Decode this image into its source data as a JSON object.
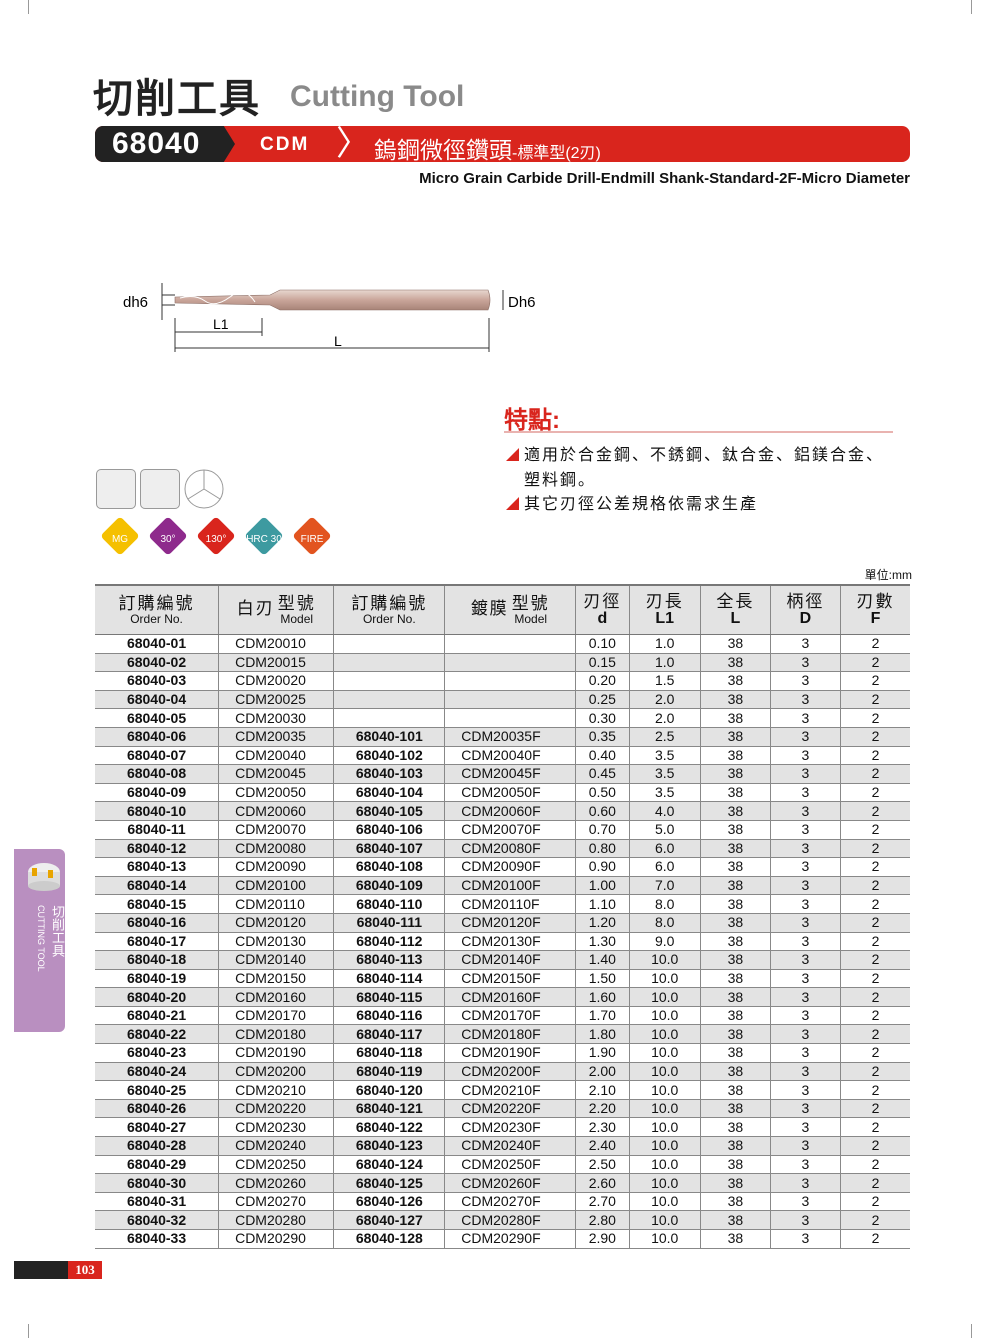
{
  "header": {
    "title_cn": "切削工具",
    "title_en": "Cutting Tool",
    "code": "68040",
    "series": "CDM",
    "name_cn": "鎢鋼微徑鑽頭",
    "name_cn_sub": "-標準型(2刃)",
    "name_en": "Micro Grain Carbide Drill-Endmill Shank-Standard-2F-Micro Diameter"
  },
  "drawing": {
    "dh6": "dh6",
    "Dh6": "Dh6",
    "L1": "L1",
    "L": "L"
  },
  "features": {
    "title": "特點:",
    "items": [
      "適用於合金鋼、不銹鋼、鈦合金、鋁鎂合金、",
      "塑料鋼。",
      "其它刃徑公差規格依需求生產"
    ]
  },
  "badges": [
    "MG",
    "30°",
    "130°",
    "HRC 30",
    "FIRE"
  ],
  "badge_colors": [
    "#f5c000",
    "#8e2a8c",
    "#d9251d",
    "#3d9aa0",
    "#e2541f"
  ],
  "unit": "單位:mm",
  "table": {
    "headers": [
      {
        "cn": "訂購編號",
        "en": "Order No."
      },
      {
        "pre": "白刃",
        "cn": "型號",
        "en": "Model"
      },
      {
        "cn": "訂購編號",
        "en": "Order No."
      },
      {
        "pre": "鍍膜",
        "cn": "型號",
        "en": "Model"
      },
      {
        "cn": "刃徑",
        "sym": "d"
      },
      {
        "cn": "刃長",
        "sym": "L1"
      },
      {
        "cn": "全長",
        "sym": "L"
      },
      {
        "cn": "柄徑",
        "sym": "D"
      },
      {
        "cn": "刃數",
        "sym": "F"
      }
    ],
    "rows": [
      [
        "68040-01",
        "CDM20010",
        "",
        "",
        "0.10",
        "1.0",
        "38",
        "3",
        "2"
      ],
      [
        "68040-02",
        "CDM20015",
        "",
        "",
        "0.15",
        "1.0",
        "38",
        "3",
        "2"
      ],
      [
        "68040-03",
        "CDM20020",
        "",
        "",
        "0.20",
        "1.5",
        "38",
        "3",
        "2"
      ],
      [
        "68040-04",
        "CDM20025",
        "",
        "",
        "0.25",
        "2.0",
        "38",
        "3",
        "2"
      ],
      [
        "68040-05",
        "CDM20030",
        "",
        "",
        "0.30",
        "2.0",
        "38",
        "3",
        "2"
      ],
      [
        "68040-06",
        "CDM20035",
        "68040-101",
        "CDM20035F",
        "0.35",
        "2.5",
        "38",
        "3",
        "2"
      ],
      [
        "68040-07",
        "CDM20040",
        "68040-102",
        "CDM20040F",
        "0.40",
        "3.5",
        "38",
        "3",
        "2"
      ],
      [
        "68040-08",
        "CDM20045",
        "68040-103",
        "CDM20045F",
        "0.45",
        "3.5",
        "38",
        "3",
        "2"
      ],
      [
        "68040-09",
        "CDM20050",
        "68040-104",
        "CDM20050F",
        "0.50",
        "3.5",
        "38",
        "3",
        "2"
      ],
      [
        "68040-10",
        "CDM20060",
        "68040-105",
        "CDM20060F",
        "0.60",
        "4.0",
        "38",
        "3",
        "2"
      ],
      [
        "68040-11",
        "CDM20070",
        "68040-106",
        "CDM20070F",
        "0.70",
        "5.0",
        "38",
        "3",
        "2"
      ],
      [
        "68040-12",
        "CDM20080",
        "68040-107",
        "CDM20080F",
        "0.80",
        "6.0",
        "38",
        "3",
        "2"
      ],
      [
        "68040-13",
        "CDM20090",
        "68040-108",
        "CDM20090F",
        "0.90",
        "6.0",
        "38",
        "3",
        "2"
      ],
      [
        "68040-14",
        "CDM20100",
        "68040-109",
        "CDM20100F",
        "1.00",
        "7.0",
        "38",
        "3",
        "2"
      ],
      [
        "68040-15",
        "CDM20110",
        "68040-110",
        "CDM20110F",
        "1.10",
        "8.0",
        "38",
        "3",
        "2"
      ],
      [
        "68040-16",
        "CDM20120",
        "68040-111",
        "CDM20120F",
        "1.20",
        "8.0",
        "38",
        "3",
        "2"
      ],
      [
        "68040-17",
        "CDM20130",
        "68040-112",
        "CDM20130F",
        "1.30",
        "9.0",
        "38",
        "3",
        "2"
      ],
      [
        "68040-18",
        "CDM20140",
        "68040-113",
        "CDM20140F",
        "1.40",
        "10.0",
        "38",
        "3",
        "2"
      ],
      [
        "68040-19",
        "CDM20150",
        "68040-114",
        "CDM20150F",
        "1.50",
        "10.0",
        "38",
        "3",
        "2"
      ],
      [
        "68040-20",
        "CDM20160",
        "68040-115",
        "CDM20160F",
        "1.60",
        "10.0",
        "38",
        "3",
        "2"
      ],
      [
        "68040-21",
        "CDM20170",
        "68040-116",
        "CDM20170F",
        "1.70",
        "10.0",
        "38",
        "3",
        "2"
      ],
      [
        "68040-22",
        "CDM20180",
        "68040-117",
        "CDM20180F",
        "1.80",
        "10.0",
        "38",
        "3",
        "2"
      ],
      [
        "68040-23",
        "CDM20190",
        "68040-118",
        "CDM20190F",
        "1.90",
        "10.0",
        "38",
        "3",
        "2"
      ],
      [
        "68040-24",
        "CDM20200",
        "68040-119",
        "CDM20200F",
        "2.00",
        "10.0",
        "38",
        "3",
        "2"
      ],
      [
        "68040-25",
        "CDM20210",
        "68040-120",
        "CDM20210F",
        "2.10",
        "10.0",
        "38",
        "3",
        "2"
      ],
      [
        "68040-26",
        "CDM20220",
        "68040-121",
        "CDM20220F",
        "2.20",
        "10.0",
        "38",
        "3",
        "2"
      ],
      [
        "68040-27",
        "CDM20230",
        "68040-122",
        "CDM20230F",
        "2.30",
        "10.0",
        "38",
        "3",
        "2"
      ],
      [
        "68040-28",
        "CDM20240",
        "68040-123",
        "CDM20240F",
        "2.40",
        "10.0",
        "38",
        "3",
        "2"
      ],
      [
        "68040-29",
        "CDM20250",
        "68040-124",
        "CDM20250F",
        "2.50",
        "10.0",
        "38",
        "3",
        "2"
      ],
      [
        "68040-30",
        "CDM20260",
        "68040-125",
        "CDM20260F",
        "2.60",
        "10.0",
        "38",
        "3",
        "2"
      ],
      [
        "68040-31",
        "CDM20270",
        "68040-126",
        "CDM20270F",
        "2.70",
        "10.0",
        "38",
        "3",
        "2"
      ],
      [
        "68040-32",
        "CDM20280",
        "68040-127",
        "CDM20280F",
        "2.80",
        "10.0",
        "38",
        "3",
        "2"
      ],
      [
        "68040-33",
        "CDM20290",
        "68040-128",
        "CDM20290F",
        "2.90",
        "10.0",
        "38",
        "3",
        "2"
      ]
    ]
  },
  "side_tab": {
    "cn": "切削工具",
    "en": "CUTTING TOOL"
  },
  "page_number": "103"
}
